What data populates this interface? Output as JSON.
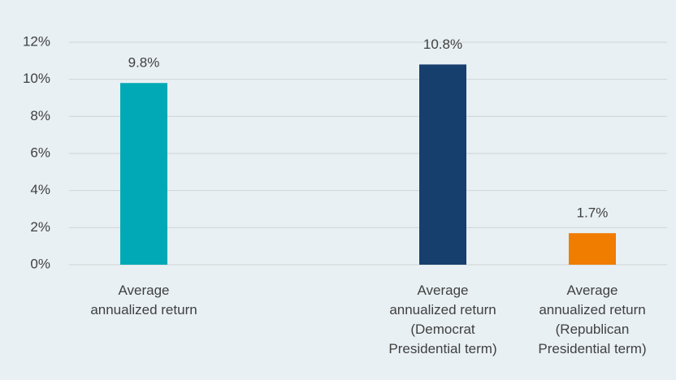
{
  "chart_data": {
    "type": "bar",
    "categories": [
      "Average\nannualized return",
      null,
      "Average\nannualized return\n(Democrat\nPresidential term)",
      "Average\nannualized return\n(Republican\nPresidential term)"
    ],
    "values": [
      9.8,
      null,
      10.8,
      1.7
    ],
    "value_labels": [
      "9.8%",
      null,
      "10.8%",
      "1.7%"
    ],
    "colors": [
      "#00a9b5",
      null,
      "#173f6e",
      "#f07c00"
    ],
    "ylim": [
      0,
      12
    ],
    "yticks": [
      {
        "value": 0,
        "label": "0%"
      },
      {
        "value": 2,
        "label": "2%"
      },
      {
        "value": 4,
        "label": "4%"
      },
      {
        "value": 6,
        "label": "6%"
      },
      {
        "value": 8,
        "label": "8%"
      },
      {
        "value": 10,
        "label": "10%"
      },
      {
        "value": 12,
        "label": "12%"
      }
    ],
    "grid": true
  }
}
